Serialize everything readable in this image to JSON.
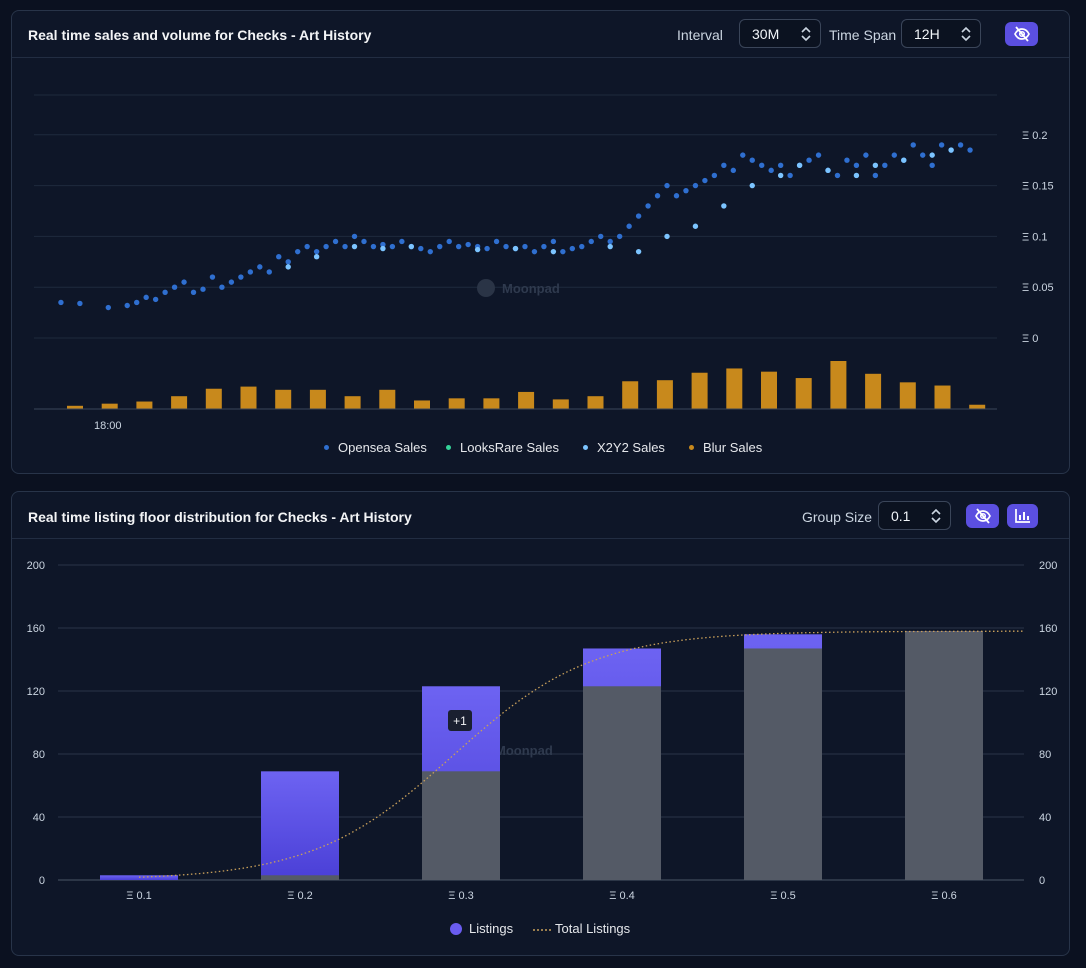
{
  "panel1": {
    "title": "Real time sales and volume for Checks - Art History",
    "interval_label": "Interval",
    "interval_value": "30M",
    "timespan_label": "Time Span",
    "timespan_value": "12H",
    "toggle_icon": "eye-off-icon",
    "watermark": "Moonpad",
    "x_tick": "18:00",
    "y_ticks": [
      "Ξ 0.2",
      "Ξ 0.15",
      "Ξ 0.1",
      "Ξ 0.05",
      "Ξ 0"
    ],
    "legend": [
      {
        "label": "Opensea Sales",
        "color": "#2f6fd0"
      },
      {
        "label": "LooksRare Sales",
        "color": "#34d399"
      },
      {
        "label": "X2Y2 Sales",
        "color": "#7cc4ff"
      },
      {
        "label": "Blur Sales",
        "color": "#c8891c"
      }
    ]
  },
  "panel2": {
    "title": "Real time listing floor distribution for Checks - Art History",
    "group_label": "Group Size",
    "group_value": "0.1",
    "toggle_icon": "eye-off-icon",
    "chart_icon": "bar-chart-icon",
    "watermark": "Moonpad",
    "tooltip": "+1",
    "legend": [
      {
        "label": "Listings",
        "color": "#6a5cf0"
      },
      {
        "label": "Total Listings",
        "color": "#c9a05a"
      }
    ]
  },
  "chart_data": [
    {
      "type": "scatter",
      "title": "Real time sales and volume for Checks - Art History",
      "ylim": [
        0,
        0.25
      ],
      "y_ticks": [
        0,
        0.05,
        0.1,
        0.15,
        0.2
      ],
      "x_tick_labels": [
        "18:00"
      ],
      "series": [
        {
          "name": "Opensea Sales",
          "color": "#2f6fd0",
          "x": [
            0.02,
            0.04,
            0.07,
            0.09,
            0.1,
            0.11,
            0.12,
            0.13,
            0.14,
            0.15,
            0.16,
            0.17,
            0.18,
            0.19,
            0.2,
            0.21,
            0.22,
            0.23,
            0.24,
            0.25,
            0.26,
            0.27,
            0.28,
            0.29,
            0.3,
            0.31,
            0.32,
            0.33,
            0.34,
            0.35,
            0.36,
            0.37,
            0.38,
            0.39,
            0.4,
            0.41,
            0.42,
            0.43,
            0.44,
            0.45,
            0.46,
            0.47,
            0.48,
            0.49,
            0.5,
            0.51,
            0.52,
            0.53,
            0.54,
            0.55,
            0.56,
            0.57,
            0.58,
            0.59,
            0.6,
            0.61,
            0.62,
            0.63,
            0.64,
            0.65,
            0.66,
            0.67,
            0.68,
            0.69,
            0.7,
            0.71,
            0.72,
            0.73,
            0.74,
            0.75,
            0.76,
            0.77,
            0.78,
            0.79,
            0.8,
            0.81,
            0.82,
            0.83,
            0.84,
            0.85,
            0.86,
            0.87,
            0.88,
            0.89,
            0.9,
            0.91,
            0.92,
            0.93,
            0.94,
            0.95,
            0.96,
            0.97,
            0.98
          ],
          "y": [
            0.035,
            0.034,
            0.03,
            0.032,
            0.035,
            0.04,
            0.038,
            0.045,
            0.05,
            0.055,
            0.045,
            0.048,
            0.06,
            0.05,
            0.055,
            0.06,
            0.065,
            0.07,
            0.065,
            0.08,
            0.075,
            0.085,
            0.09,
            0.085,
            0.09,
            0.095,
            0.09,
            0.1,
            0.095,
            0.09,
            0.092,
            0.09,
            0.095,
            0.09,
            0.088,
            0.085,
            0.09,
            0.095,
            0.09,
            0.092,
            0.09,
            0.088,
            0.095,
            0.09,
            0.088,
            0.09,
            0.085,
            0.09,
            0.095,
            0.085,
            0.088,
            0.09,
            0.095,
            0.1,
            0.095,
            0.1,
            0.11,
            0.12,
            0.13,
            0.14,
            0.15,
            0.14,
            0.145,
            0.15,
            0.155,
            0.16,
            0.17,
            0.165,
            0.18,
            0.175,
            0.17,
            0.165,
            0.17,
            0.16,
            0.17,
            0.175,
            0.18,
            0.165,
            0.16,
            0.175,
            0.17,
            0.18,
            0.16,
            0.17,
            0.18,
            0.175,
            0.19,
            0.18,
            0.17,
            0.19,
            0.185,
            0.19,
            0.185
          ]
        },
        {
          "name": "LooksRare Sales",
          "color": "#34d399",
          "x": [],
          "y": []
        },
        {
          "name": "X2Y2 Sales",
          "color": "#7cc4ff",
          "x": [
            0.26,
            0.29,
            0.33,
            0.36,
            0.39,
            0.46,
            0.5,
            0.54,
            0.6,
            0.63,
            0.66,
            0.69,
            0.72,
            0.75,
            0.78,
            0.8,
            0.83,
            0.86,
            0.88,
            0.91,
            0.94,
            0.96
          ],
          "y": [
            0.07,
            0.08,
            0.09,
            0.088,
            0.09,
            0.087,
            0.088,
            0.085,
            0.09,
            0.085,
            0.1,
            0.11,
            0.13,
            0.15,
            0.16,
            0.17,
            0.165,
            0.16,
            0.17,
            0.175,
            0.18,
            0.185
          ]
        },
        {
          "name": "Blur Sales",
          "color": "#c8891c",
          "x": [],
          "y": []
        }
      ],
      "volume_bars": {
        "color": "#c8891c",
        "values": [
          3,
          5,
          7,
          12,
          19,
          21,
          18,
          18,
          12,
          18,
          8,
          10,
          10,
          16,
          9,
          12,
          26,
          27,
          34,
          38,
          35,
          29,
          45,
          33,
          25,
          22,
          4
        ]
      }
    },
    {
      "type": "bar",
      "title": "Real time listing floor distribution for Checks - Art History",
      "categories": [
        "Ξ 0.1",
        "Ξ 0.2",
        "Ξ 0.3",
        "Ξ 0.4",
        "Ξ 0.5",
        "Ξ 0.6"
      ],
      "ylim": [
        0,
        200
      ],
      "y_ticks": [
        0,
        40,
        80,
        120,
        160,
        200
      ],
      "series": [
        {
          "name": "Listings",
          "values": [
            3,
            69,
            123,
            147,
            156,
            158
          ]
        },
        {
          "name": "Total Listings",
          "values": [
            0,
            3,
            69,
            123,
            147,
            158
          ]
        }
      ]
    }
  ]
}
